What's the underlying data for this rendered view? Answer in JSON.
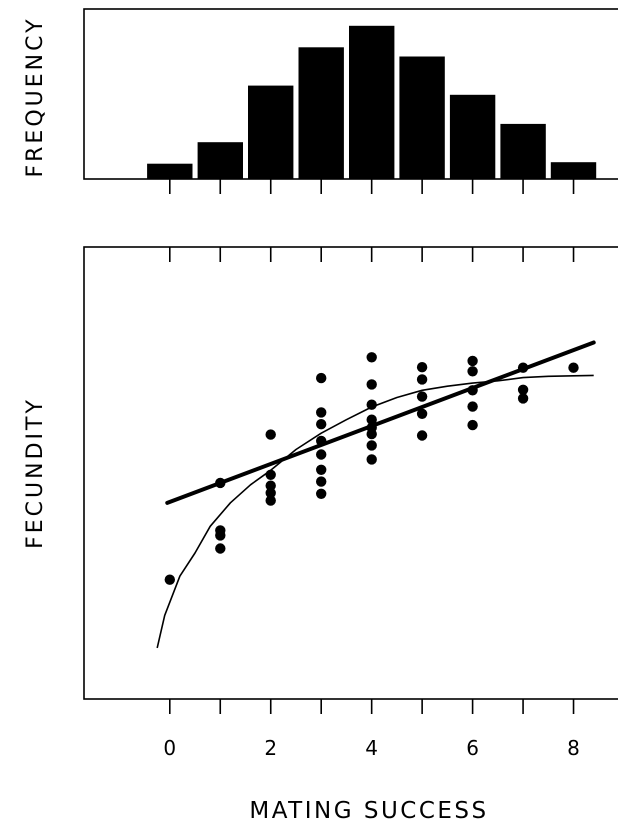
{
  "chart_data": [
    {
      "type": "bar",
      "ylabel": "FREQUENCY",
      "xlim": [
        -1.7,
        9
      ],
      "categories": [
        0,
        1,
        2,
        3,
        4,
        5,
        6,
        7,
        8
      ],
      "values": [
        1,
        2.4,
        6.1,
        8.6,
        10,
        8,
        5.5,
        3.6,
        1.1
      ],
      "ylim": [
        0,
        11.1
      ],
      "color": "#000000"
    },
    {
      "type": "scatter",
      "xlabel": "MATING SUCCESS",
      "ylabel": "FECUNDITY",
      "xlim": [
        -1.7,
        9
      ],
      "ylim": [
        0,
        100
      ],
      "xticks": [
        0,
        2,
        4,
        6,
        8
      ],
      "points": [
        {
          "x": 0,
          "y": 26.4
        },
        {
          "x": 1,
          "y": 47.8
        },
        {
          "x": 1,
          "y": 37.3
        },
        {
          "x": 1,
          "y": 36.2
        },
        {
          "x": 1,
          "y": 33.3
        },
        {
          "x": 2,
          "y": 58.5
        },
        {
          "x": 2,
          "y": 49.6
        },
        {
          "x": 2,
          "y": 47.2
        },
        {
          "x": 2,
          "y": 45.6
        },
        {
          "x": 2,
          "y": 43.9
        },
        {
          "x": 3,
          "y": 71.0
        },
        {
          "x": 3,
          "y": 63.4
        },
        {
          "x": 3,
          "y": 60.8
        },
        {
          "x": 3,
          "y": 57.1
        },
        {
          "x": 3,
          "y": 54.1
        },
        {
          "x": 3,
          "y": 50.7
        },
        {
          "x": 3,
          "y": 48.1
        },
        {
          "x": 3,
          "y": 45.4
        },
        {
          "x": 4,
          "y": 75.6
        },
        {
          "x": 4,
          "y": 69.6
        },
        {
          "x": 4,
          "y": 65.1
        },
        {
          "x": 4,
          "y": 61.8
        },
        {
          "x": 4,
          "y": 60.0
        },
        {
          "x": 4,
          "y": 58.6
        },
        {
          "x": 4,
          "y": 56.1
        },
        {
          "x": 4,
          "y": 53.0
        },
        {
          "x": 5,
          "y": 73.4
        },
        {
          "x": 5,
          "y": 70.7
        },
        {
          "x": 5,
          "y": 66.9
        },
        {
          "x": 5,
          "y": 63.1
        },
        {
          "x": 5,
          "y": 58.3
        },
        {
          "x": 6,
          "y": 74.8
        },
        {
          "x": 6,
          "y": 72.5
        },
        {
          "x": 6,
          "y": 68.3
        },
        {
          "x": 6,
          "y": 64.7
        },
        {
          "x": 6,
          "y": 60.6
        },
        {
          "x": 7,
          "y": 73.3
        },
        {
          "x": 7,
          "y": 68.4
        },
        {
          "x": 7,
          "y": 66.5
        },
        {
          "x": 8,
          "y": 73.3
        }
      ],
      "fit_lines": [
        {
          "kind": "linear",
          "x_start": -0.05,
          "x_end": 8.4,
          "intercept": 43.6,
          "slope": 4.2
        },
        {
          "kind": "curve",
          "points": [
            [
              -0.25,
              11.3
            ],
            [
              -0.1,
              18.5
            ],
            [
              0.2,
              27.2
            ],
            [
              0.5,
              32.3
            ],
            [
              0.8,
              38.2
            ],
            [
              1.2,
              43.4
            ],
            [
              1.6,
              47.4
            ],
            [
              2.0,
              50.6
            ],
            [
              2.5,
              55.2
            ],
            [
              3.0,
              58.8
            ],
            [
              3.5,
              61.8
            ],
            [
              4.0,
              64.6
            ],
            [
              4.5,
              66.7
            ],
            [
              5.0,
              68.3
            ],
            [
              5.5,
              69.2
            ],
            [
              6.0,
              69.9
            ],
            [
              6.5,
              70.4
            ],
            [
              7.0,
              71.1
            ],
            [
              7.5,
              71.4
            ],
            [
              8.0,
              71.5
            ],
            [
              8.4,
              71.6
            ]
          ]
        }
      ]
    }
  ]
}
